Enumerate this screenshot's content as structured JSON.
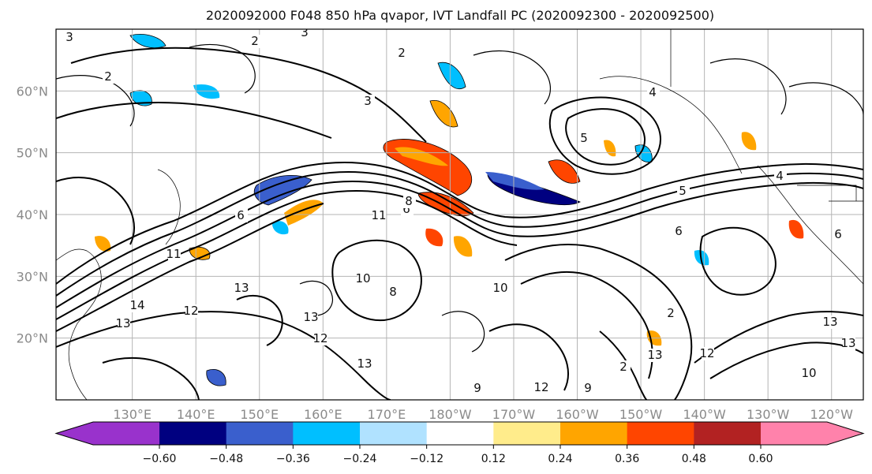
{
  "title": "2020092000 F048 850 hPa qvapor, IVT Landfall PC (2020092300 - 2020092500)",
  "map": {
    "lat_labels": [
      "60°N",
      "50°N",
      "40°N",
      "30°N",
      "20°N"
    ],
    "lat_values": [
      60,
      50,
      40,
      30,
      20
    ],
    "lon_labels": [
      "130°E",
      "140°E",
      "150°E",
      "160°E",
      "170°E",
      "180°W",
      "170°W",
      "160°W",
      "150°W",
      "140°W",
      "130°W",
      "120°W"
    ],
    "lon_values": [
      130,
      140,
      150,
      160,
      170,
      180,
      190,
      200,
      210,
      220,
      230,
      240
    ],
    "contour_labels": [
      "3",
      "2",
      "3",
      "2",
      "2",
      "3",
      "4",
      "5",
      "5",
      "4",
      "6",
      "6",
      "6",
      "11",
      "8",
      "11",
      "13",
      "14",
      "13",
      "12",
      "10",
      "8",
      "13",
      "12",
      "10",
      "13",
      "6",
      "9",
      "12",
      "13",
      "2",
      "12",
      "13",
      "10",
      "13",
      "9",
      "2"
    ]
  },
  "colorbar": {
    "tick_labels": [
      "−0.60",
      "−0.48",
      "−0.36",
      "−0.24",
      "−0.12",
      "0.12",
      "0.24",
      "0.36",
      "0.48",
      "0.60"
    ],
    "colors": [
      "#9932CC",
      "#000080",
      "#3A5FCD",
      "#00BFFF",
      "#B0E2FF",
      "#FFFFFF",
      "#FFEC8B",
      "#FFA500",
      "#FF4500",
      "#B22222",
      "#FF82AB"
    ]
  }
}
